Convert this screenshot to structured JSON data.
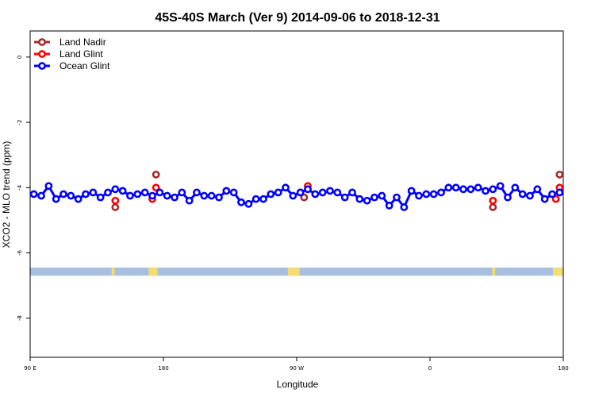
{
  "chart_data": {
    "type": "line",
    "title": "45S-40S March (Ver 9)   2014-09-06 to 2018-12-31",
    "xlabel": "Longitude",
    "ylabel": "XCO2 - MLO trend (ppm)",
    "xlim": [
      90,
      450
    ],
    "ylim": [
      -9.2,
      0.8
    ],
    "x_ticks": [
      {
        "value": 90,
        "label": "90 E"
      },
      {
        "value": 180,
        "label": "180"
      },
      {
        "value": 270,
        "label": "90 W"
      },
      {
        "value": 360,
        "label": "0"
      },
      {
        "value": 450,
        "label": "180"
      }
    ],
    "y_ticks": [
      {
        "value": 0,
        "label": "0"
      },
      {
        "value": -2,
        "label": "-2"
      },
      {
        "value": -4,
        "label": "-4"
      },
      {
        "value": -6,
        "label": "-6"
      },
      {
        "value": -8,
        "label": "-8"
      }
    ],
    "grid": false,
    "legend_position": "top-left",
    "series": [
      {
        "name": "Land Nadir",
        "color": "#a52a2a",
        "x": [
          147.5,
          175,
          275,
          402.5,
          447.5
        ],
        "y": [
          -4.6,
          -3.6,
          -4.3,
          -4.6,
          -3.6
        ]
      },
      {
        "name": "Land Glint",
        "color": "#ff0000",
        "x": [
          147.5,
          172.5,
          175,
          272.5,
          277.5,
          402.5,
          445,
          447.5
        ],
        "y": [
          -4.4,
          -4.35,
          -4.0,
          -4.15,
          -3.95,
          -4.4,
          -4.35,
          -4.0
        ]
      },
      {
        "name": "Ocean Glint",
        "color": "#0000ff",
        "x": [
          92.5,
          97.5,
          102.5,
          107.5,
          112.5,
          117.5,
          122.5,
          127.5,
          132.5,
          137.5,
          142.5,
          147.5,
          152.5,
          157.5,
          162.5,
          167.5,
          172.5,
          177.5,
          182.5,
          187.5,
          192.5,
          197.5,
          202.5,
          207.5,
          212.5,
          217.5,
          222.5,
          227.5,
          232.5,
          237.5,
          242.5,
          247.5,
          252.5,
          257.5,
          262.5,
          267.5,
          272.5,
          277.5,
          282.5,
          287.5,
          292.5,
          297.5,
          302.5,
          307.5,
          312.5,
          317.5,
          322.5,
          327.5,
          332.5,
          337.5,
          342.5,
          347.5,
          352.5,
          357.5,
          362.5,
          367.5,
          372.5,
          377.5,
          382.5,
          387.5,
          392.5,
          397.5,
          402.5,
          407.5,
          412.5,
          417.5,
          422.5,
          427.5,
          432.5,
          437.5,
          442.5,
          447.5
        ],
        "y": [
          -4.2,
          -4.25,
          -3.95,
          -4.35,
          -4.2,
          -4.25,
          -4.35,
          -4.2,
          -4.15,
          -4.3,
          -4.15,
          -4.05,
          -4.1,
          -4.25,
          -4.2,
          -4.15,
          -4.25,
          -4.15,
          -4.25,
          -4.3,
          -4.15,
          -4.4,
          -4.15,
          -4.25,
          -4.25,
          -4.3,
          -4.1,
          -4.15,
          -4.45,
          -4.5,
          -4.35,
          -4.35,
          -4.2,
          -4.15,
          -4.0,
          -4.25,
          -4.15,
          -4.05,
          -4.2,
          -4.15,
          -4.1,
          -4.15,
          -4.3,
          -4.15,
          -4.35,
          -4.4,
          -4.3,
          -4.25,
          -4.55,
          -4.3,
          -4.6,
          -4.1,
          -4.25,
          -4.2,
          -4.2,
          -4.15,
          -4.0,
          -4.0,
          -4.05,
          -4.05,
          -4.0,
          -4.1,
          -4.05,
          -3.95,
          -4.3,
          -4.0,
          -4.2,
          -4.25,
          -4.05,
          -4.35,
          -4.2,
          -4.15
        ]
      }
    ],
    "map_strip": {
      "ocean_color": "#a8bfe0",
      "land_color": "#f5dc6e",
      "y_range": [
        -6.7,
        -6.45
      ],
      "land_segments": [
        [
          145,
          147
        ],
        [
          170,
          176
        ],
        [
          264,
          272
        ],
        [
          402,
          404
        ],
        [
          443,
          450
        ]
      ]
    }
  }
}
